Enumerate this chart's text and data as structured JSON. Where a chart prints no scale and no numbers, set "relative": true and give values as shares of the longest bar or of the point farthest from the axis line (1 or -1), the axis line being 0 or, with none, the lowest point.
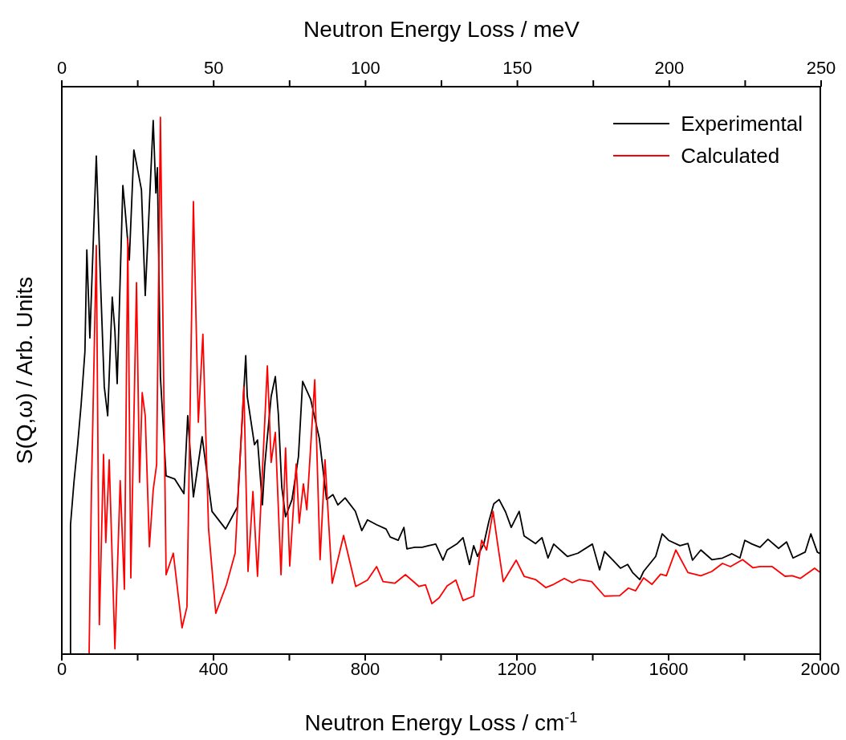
{
  "chart_data": {
    "type": "line",
    "xlabel": "Neutron Energy Loss / cm$^{-1}$",
    "x2label": "Neutron Energy Loss / meV",
    "ylabel": "S(Q,ω) / Arb. Units",
    "relative": true,
    "xlim": [
      0,
      2000
    ],
    "xticks": [
      0,
      {
        "value": 200,
        "label": null
      },
      400,
      {
        "value": 600,
        "label": null
      },
      800,
      {
        "value": 1000,
        "label": null
      },
      1200,
      {
        "value": 1400,
        "label": null
      },
      1600,
      {
        "value": 1800,
        "label": null
      },
      2000
    ],
    "x2lim": [
      0,
      250
    ],
    "x2ticks": [
      0,
      {
        "value": 25,
        "label": null
      },
      50,
      {
        "value": 75,
        "label": null
      },
      100,
      {
        "value": 125,
        "label": null
      },
      150,
      {
        "value": 175,
        "label": null
      },
      200,
      {
        "value": 225,
        "label": null
      },
      250
    ],
    "legend": "top right",
    "marker": "none",
    "line_style": "solid",
    "series": [
      {
        "name": "Experimental",
        "color": "#000000",
        "x": [
          23,
          23,
          32,
          42,
          51,
          61,
          66,
          74,
          91,
          102,
          112,
          121,
          133,
          140,
          146,
          161,
          167,
          178,
          190,
          210,
          220,
          241,
          248,
          252,
          260,
          275,
          298,
          322,
          332,
          347,
          370,
          396,
          432,
          463,
          485,
          489,
          508,
          516,
          529,
          535,
          552,
          563,
          571,
          580,
          590,
          607,
          624,
          635,
          656,
          679,
          698,
          715,
          728,
          747,
          774,
          791,
          806,
          830,
          855,
          866,
          887,
          902,
          910,
          931,
          950,
          967,
          986,
          1005,
          1016,
          1043,
          1058,
          1075,
          1086,
          1096,
          1113,
          1126,
          1139,
          1153,
          1170,
          1185,
          1206,
          1219,
          1249,
          1266,
          1282,
          1297,
          1333,
          1361,
          1399,
          1418,
          1431,
          1452,
          1473,
          1492,
          1505,
          1524,
          1534,
          1566,
          1583,
          1600,
          1630,
          1651,
          1663,
          1685,
          1714,
          1742,
          1767,
          1788,
          1801,
          1820,
          1841,
          1862,
          1890,
          1911,
          1928,
          1960,
          1975,
          1992,
          2000
        ],
        "values": [
          0,
          0.241,
          0.32,
          0.392,
          0.465,
          0.564,
          0.753,
          0.589,
          0.928,
          0.695,
          0.498,
          0.444,
          0.665,
          0.602,
          0.504,
          0.873,
          0.827,
          0.734,
          0.939,
          0.865,
          0.668,
          0.994,
          0.859,
          0.906,
          0.517,
          0.332,
          0.326,
          0.299,
          0.444,
          0.293,
          0.405,
          0.266,
          0.233,
          0.274,
          0.556,
          0.48,
          0.39,
          0.399,
          0.278,
          0.351,
          0.48,
          0.517,
          0.447,
          0.311,
          0.256,
          0.288,
          0.368,
          0.508,
          0.475,
          0.402,
          0.288,
          0.297,
          0.278,
          0.291,
          0.266,
          0.23,
          0.25,
          0.241,
          0.233,
          0.218,
          0.212,
          0.236,
          0.196,
          0.199,
          0.199,
          0.202,
          0.205,
          0.175,
          0.194,
          0.206,
          0.217,
          0.167,
          0.202,
          0.182,
          0.206,
          0.247,
          0.28,
          0.288,
          0.265,
          0.236,
          0.266,
          0.22,
          0.206,
          0.217,
          0.179,
          0.205,
          0.182,
          0.188,
          0.205,
          0.157,
          0.191,
          0.176,
          0.16,
          0.167,
          0.152,
          0.139,
          0.154,
          0.182,
          0.224,
          0.212,
          0.202,
          0.206,
          0.175,
          0.194,
          0.176,
          0.179,
          0.187,
          0.179,
          0.212,
          0.205,
          0.199,
          0.214,
          0.197,
          0.209,
          0.179,
          0.19,
          0.224,
          0.19,
          0.187
        ]
      },
      {
        "name": "Calculated",
        "color": "#ff0000",
        "x": [
          0,
          72,
          78,
          91,
          99,
          110,
          116,
          125,
          140,
          154,
          165,
          174,
          182,
          197,
          205,
          212,
          220,
          231,
          241,
          250,
          260,
          275,
          294,
          317,
          330,
          347,
          360,
          372,
          387,
          406,
          434,
          457,
          480,
          491,
          504,
          516,
          542,
          552,
          563,
          578,
          590,
          601,
          618,
          626,
          637,
          646,
          667,
          681,
          694,
          713,
          743,
          775,
          806,
          830,
          847,
          878,
          906,
          942,
          959,
          976,
          995,
          1016,
          1039,
          1058,
          1086,
          1107,
          1120,
          1137,
          1149,
          1164,
          1198,
          1219,
          1249,
          1276,
          1297,
          1325,
          1346,
          1365,
          1397,
          1431,
          1471,
          1494,
          1513,
          1534,
          1556,
          1579,
          1594,
          1619,
          1651,
          1685,
          1714,
          1742,
          1763,
          1795,
          1822,
          1841,
          1873,
          1907,
          1926,
          1947,
          1985,
          2000
        ],
        "values": [
          0,
          0,
          0.299,
          0.761,
          0.055,
          0.372,
          0.208,
          0.362,
          0.01,
          0.323,
          0.121,
          0.774,
          0.142,
          0.692,
          0.32,
          0.487,
          0.444,
          0.2,
          0.306,
          0.353,
          1,
          0.148,
          0.188,
          0.049,
          0.088,
          0.843,
          0.432,
          0.596,
          0.233,
          0.076,
          0.129,
          0.188,
          0.498,
          0.154,
          0.303,
          0.145,
          0.537,
          0.357,
          0.413,
          0.148,
          0.384,
          0.164,
          0.354,
          0.244,
          0.317,
          0.269,
          0.511,
          0.176,
          0.362,
          0.132,
          0.221,
          0.126,
          0.138,
          0.163,
          0.135,
          0.132,
          0.148,
          0.126,
          0.129,
          0.094,
          0.105,
          0.127,
          0.138,
          0.1,
          0.108,
          0.212,
          0.194,
          0.266,
          0.206,
          0.135,
          0.175,
          0.145,
          0.139,
          0.124,
          0.13,
          0.141,
          0.133,
          0.139,
          0.135,
          0.108,
          0.109,
          0.123,
          0.118,
          0.142,
          0.13,
          0.149,
          0.146,
          0.194,
          0.152,
          0.146,
          0.154,
          0.169,
          0.163,
          0.176,
          0.161,
          0.163,
          0.163,
          0.145,
          0.146,
          0.141,
          0.16,
          0.152
        ]
      }
    ]
  }
}
